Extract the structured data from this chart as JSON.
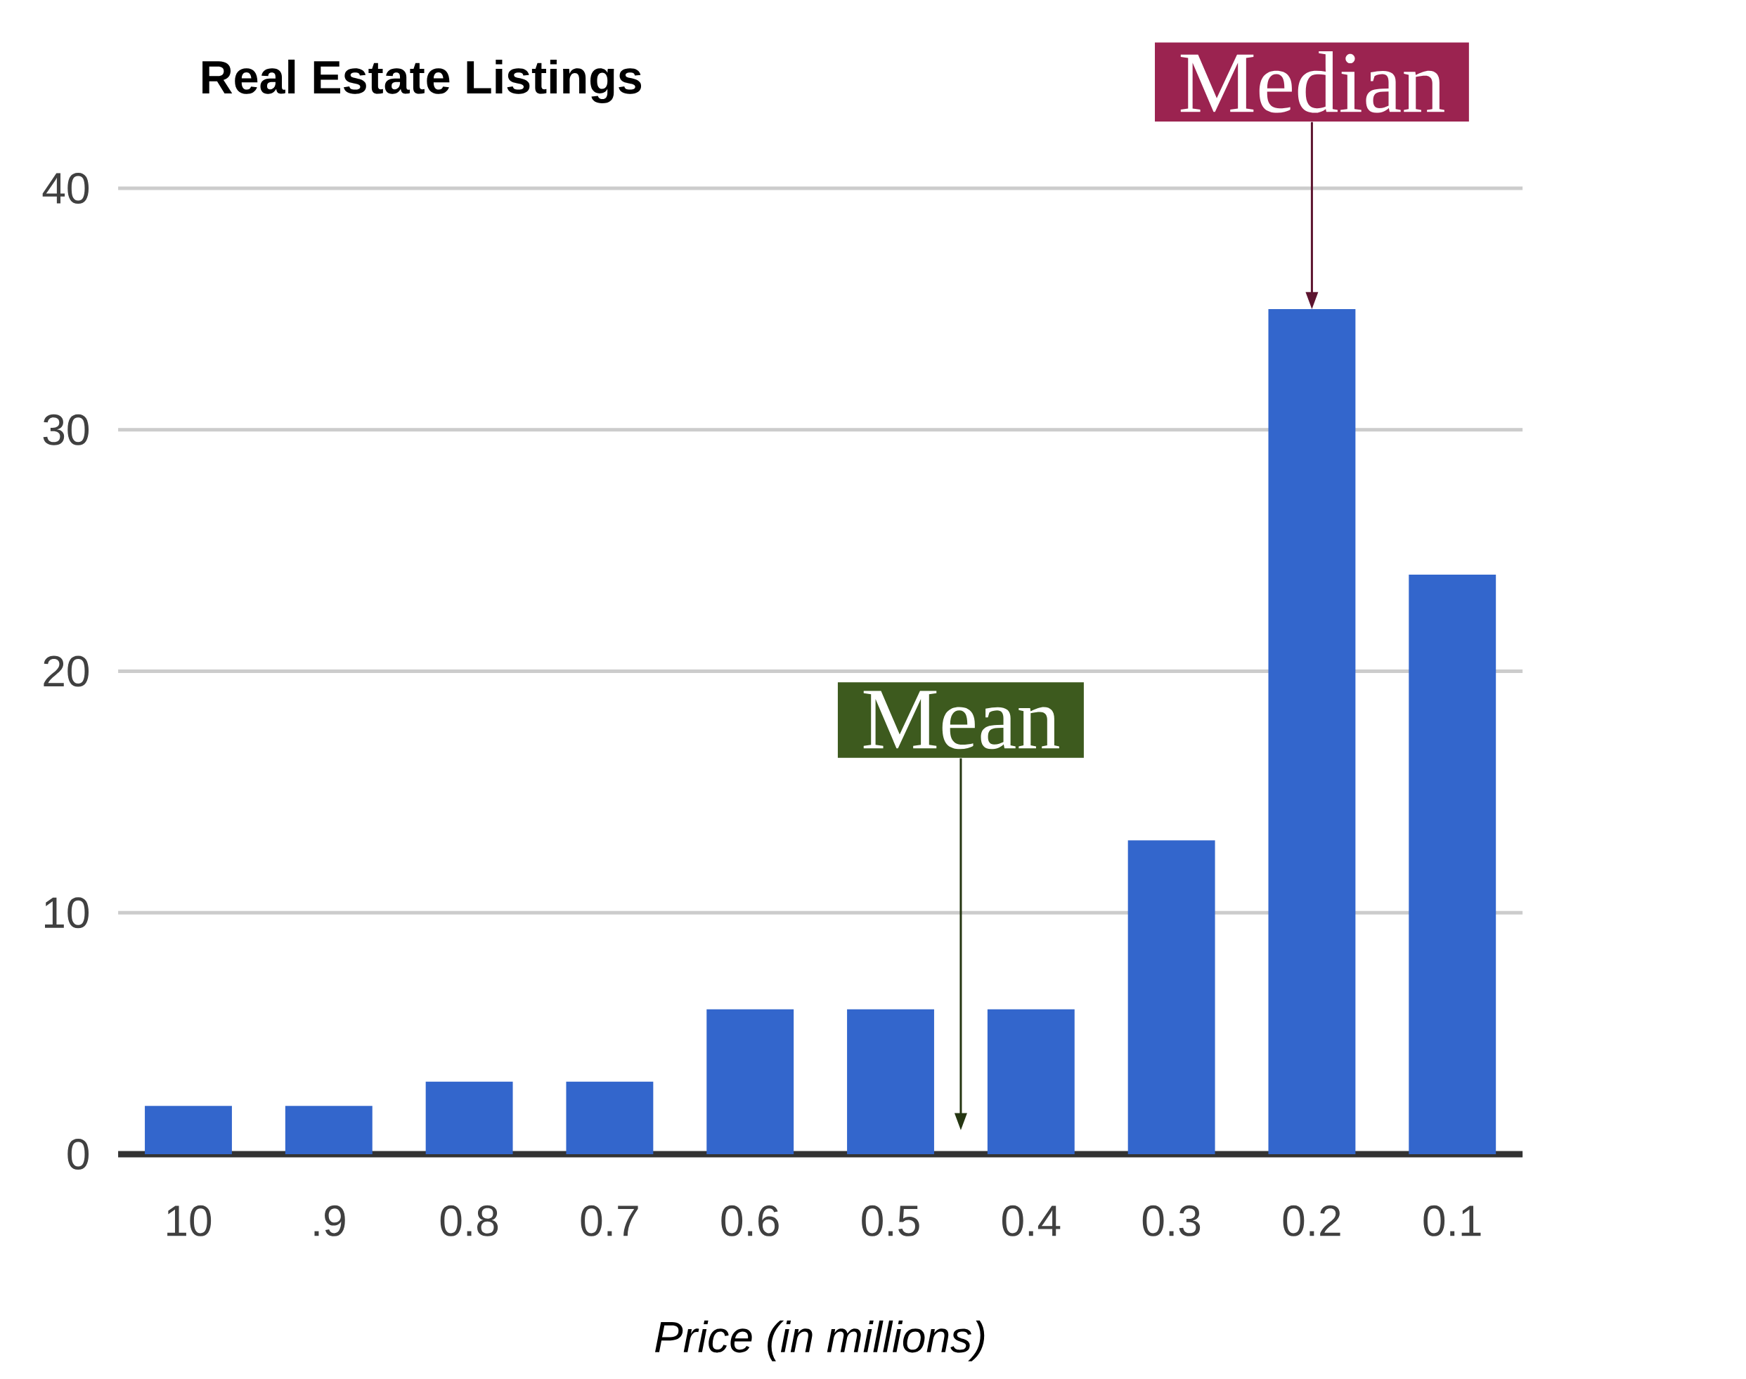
{
  "chart_data": {
    "type": "bar",
    "title": "Real Estate Listings",
    "xlabel": "Price (in millions)",
    "categories": [
      "10",
      ".9",
      "0.8",
      "0.7",
      "0.6",
      "0.5",
      "0.4",
      "0.3",
      "0.2",
      "0.1"
    ],
    "values": [
      2,
      2,
      3,
      3,
      6,
      6,
      6,
      13,
      35,
      24
    ],
    "color": "#3366cc",
    "ylim": [
      0,
      40
    ],
    "yticks": [
      0,
      10,
      20,
      30,
      40
    ],
    "grid": "y",
    "annotations": [
      {
        "text": "Median",
        "x": "0.2",
        "y": 35
      },
      "Mean"
    ]
  }
}
